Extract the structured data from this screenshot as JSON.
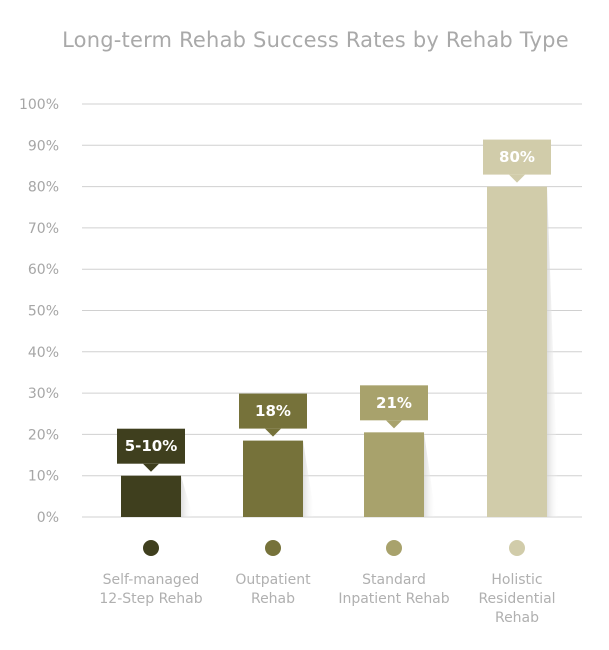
{
  "chart_data": {
    "type": "bar",
    "title": "Long-term Rehab Success Rates by Rehab Type",
    "categories": [
      [
        "Self-managed",
        "12-Step Rehab"
      ],
      [
        "Outpatient",
        "Rehab"
      ],
      [
        "Standard",
        "Inpatient Rehab"
      ],
      [
        "Holistic",
        "Residential",
        "Rehab"
      ]
    ],
    "values": [
      10,
      18.5,
      20.5,
      80
    ],
    "data_labels": [
      "5-10%",
      "18%",
      "21%",
      "80%"
    ],
    "y_ticks": [
      "0%",
      "10%",
      "20%",
      "30%",
      "40%",
      "50%",
      "60%",
      "70%",
      "80%",
      "90%",
      "100%"
    ],
    "ylim": [
      0,
      100
    ],
    "grid": true,
    "colors": [
      "#3f3f1e",
      "#76723a",
      "#a8a26c",
      "#d1ccaa"
    ]
  }
}
